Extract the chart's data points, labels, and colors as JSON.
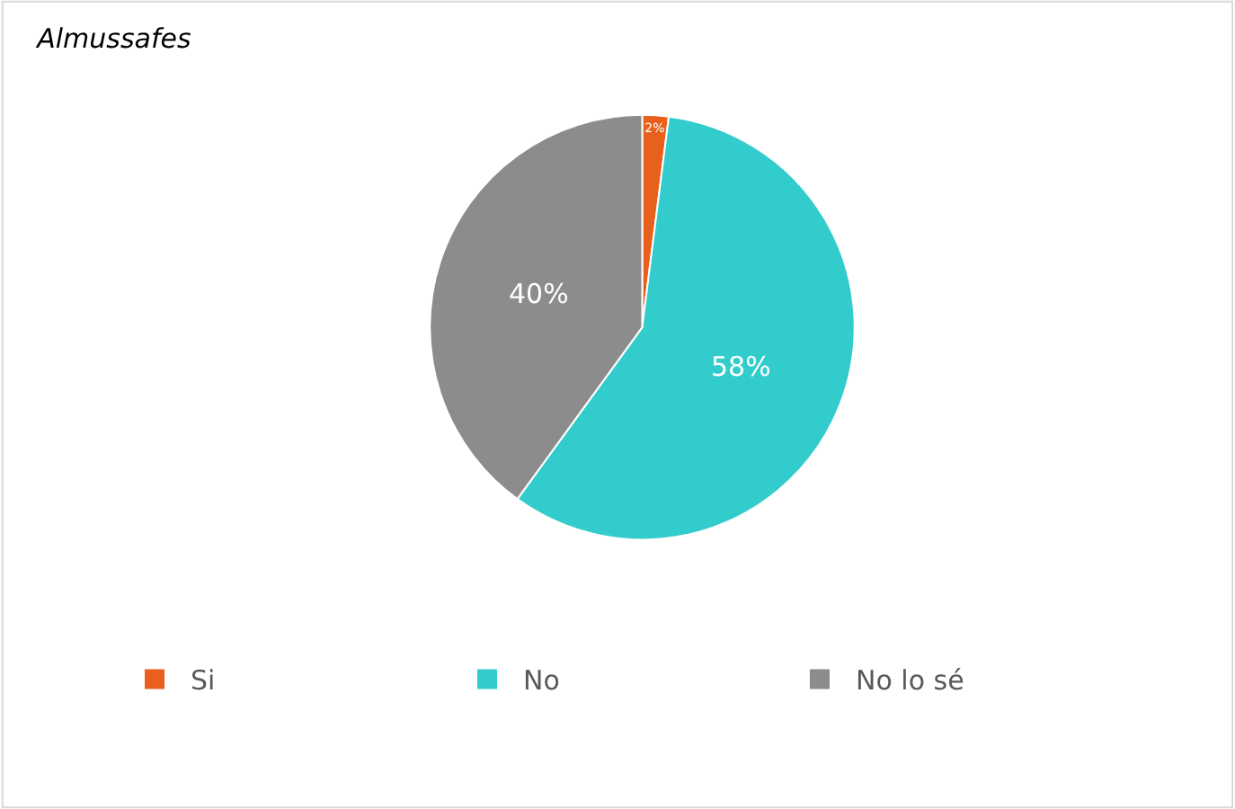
{
  "chart_data": {
    "type": "pie",
    "title": "Almussafes",
    "categories": [
      "Si",
      "No",
      "No lo sé"
    ],
    "values": [
      2,
      58,
      40
    ],
    "value_labels": [
      "2%",
      "58%",
      "40%"
    ],
    "colors": [
      "#e8601c",
      "#33cccc",
      "#8c8c8c"
    ],
    "legend": "bottom"
  }
}
